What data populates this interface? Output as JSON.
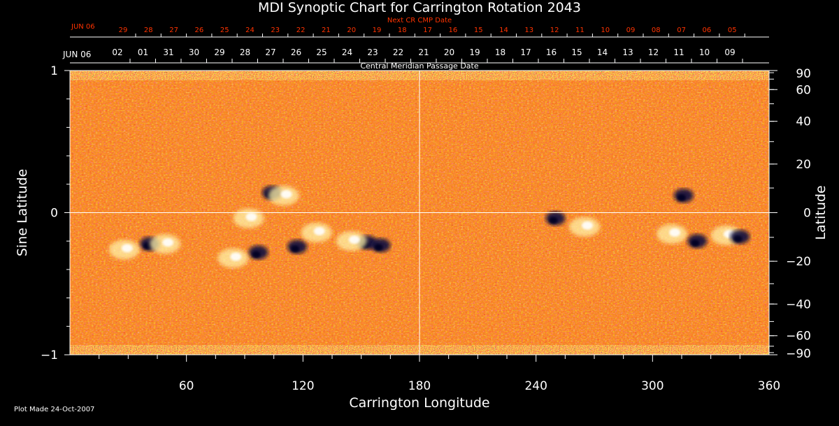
{
  "title": "MDI Synoptic Chart for Carrington Rotation 2043",
  "footer": "Plot Made 24-Oct-2007",
  "colors": {
    "background": "#000000",
    "axis": "#ffffff",
    "next_cr_labels": "#ff3300",
    "field_base": "#e8400f",
    "positive_polarity": "#fff2a8",
    "negative_polarity": "#0a0a40"
  },
  "chart_data": {
    "type": "heatmap",
    "title": "MDI Synoptic Chart for Carrington Rotation 2043",
    "xlabel": "Carrington Longitude",
    "ylabel_left": "Sine Latitude",
    "ylabel_right": "Latitude",
    "xlim": [
      0,
      360
    ],
    "ylim": [
      -1,
      1
    ],
    "x_ticks": [
      "60",
      "120",
      "180",
      "240",
      "300",
      "360"
    ],
    "y_left_ticks": [
      "1",
      "0",
      "−1"
    ],
    "y_right_ticks": [
      "90",
      "60",
      "40",
      "20",
      "0",
      "−20",
      "−40",
      "−60",
      "−90"
    ],
    "y_right_tick_values": [
      90,
      60,
      40,
      20,
      0,
      -20,
      -40,
      -60,
      -90
    ],
    "grid": "crosshair at longitude 180 and sine latitude 0",
    "top_axis": {
      "label": "Central Meridian Passage Date",
      "start_label": "JUN 06",
      "dates": [
        "02",
        "01",
        "31",
        "30",
        "29",
        "28",
        "27",
        "26",
        "25",
        "24",
        "23",
        "22",
        "21",
        "20",
        "19",
        "18",
        "17",
        "16",
        "15",
        "14",
        "13",
        "12",
        "11",
        "10",
        "09"
      ]
    },
    "next_cr_axis": {
      "label": "Next CR CMP Date",
      "start_label": "JUN 06",
      "dates": [
        "29",
        "28",
        "27",
        "26",
        "25",
        "24",
        "23",
        "22",
        "21",
        "20",
        "19",
        "18",
        "17",
        "16",
        "15",
        "14",
        "13",
        "12",
        "11",
        "10",
        "09",
        "08",
        "07",
        "06",
        "05"
      ]
    },
    "active_regions": [
      {
        "lon": 41,
        "sinlat": -0.22,
        "polarity": "negative"
      },
      {
        "lon": 28,
        "sinlat": -0.26,
        "polarity": "positive"
      },
      {
        "lon": 49,
        "sinlat": -0.22,
        "polarity": "positive"
      },
      {
        "lon": 104,
        "sinlat": 0.14,
        "polarity": "negative"
      },
      {
        "lon": 110,
        "sinlat": 0.12,
        "polarity": "positive"
      },
      {
        "lon": 92,
        "sinlat": -0.04,
        "polarity": "positive"
      },
      {
        "lon": 97,
        "sinlat": -0.28,
        "polarity": "negative"
      },
      {
        "lon": 84,
        "sinlat": -0.32,
        "polarity": "positive"
      },
      {
        "lon": 117,
        "sinlat": -0.24,
        "polarity": "negative"
      },
      {
        "lon": 127,
        "sinlat": -0.14,
        "polarity": "positive"
      },
      {
        "lon": 153,
        "sinlat": -0.21,
        "polarity": "negative"
      },
      {
        "lon": 145,
        "sinlat": -0.2,
        "polarity": "positive"
      },
      {
        "lon": 160,
        "sinlat": -0.23,
        "polarity": "negative"
      },
      {
        "lon": 250,
        "sinlat": -0.04,
        "polarity": "negative"
      },
      {
        "lon": 265,
        "sinlat": -0.1,
        "polarity": "positive"
      },
      {
        "lon": 310,
        "sinlat": -0.15,
        "polarity": "positive"
      },
      {
        "lon": 323,
        "sinlat": -0.2,
        "polarity": "negative"
      },
      {
        "lon": 338,
        "sinlat": -0.16,
        "polarity": "positive"
      },
      {
        "lon": 345,
        "sinlat": -0.17,
        "polarity": "negative"
      },
      {
        "lon": 316,
        "sinlat": 0.12,
        "polarity": "negative"
      }
    ]
  }
}
